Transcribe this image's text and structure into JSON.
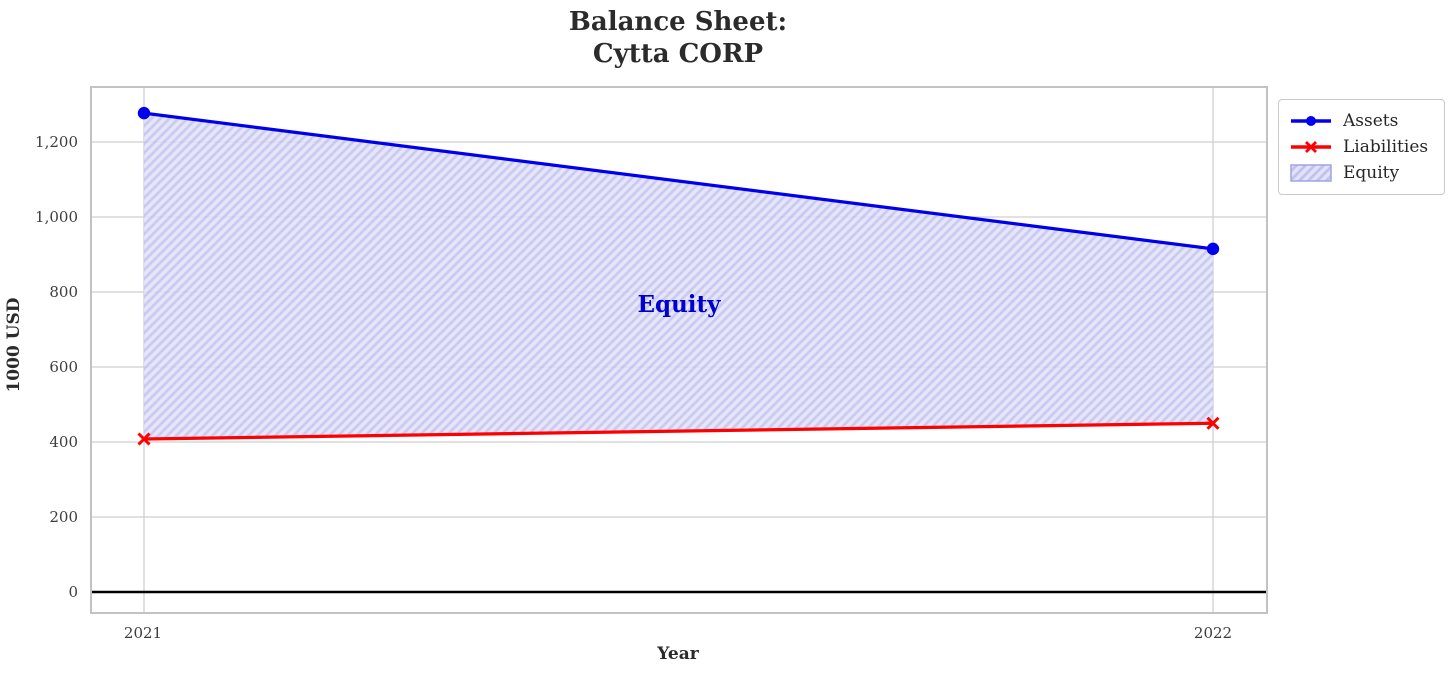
{
  "title": {
    "line1": "Balance Sheet:",
    "line2": "Cytta CORP"
  },
  "chart_data": {
    "type": "line",
    "x_categories": [
      "2021",
      "2022"
    ],
    "series": [
      {
        "name": "Assets",
        "values": [
          1277,
          915
        ],
        "color": "#0000ee",
        "marker": "circle"
      },
      {
        "name": "Liabilities",
        "values": [
          408,
          450
        ],
        "color": "#ff0000",
        "marker": "x"
      }
    ],
    "equity_area": {
      "name": "Equity",
      "between": [
        "Assets",
        "Liabilities"
      ],
      "values": [
        869,
        465
      ],
      "fill": "#e2e2fa",
      "hatch_color": "#c2c2f0",
      "edge_color": "#a3a3e0"
    },
    "annotation": {
      "text": "Equity",
      "color": "#0000cc"
    },
    "xlabel": "Year",
    "ylabel": "1000 USD",
    "yticks": [
      0,
      200,
      400,
      600,
      800,
      1000,
      1200
    ],
    "ytick_labels": [
      "0",
      "200",
      "400",
      "600",
      "800",
      "1,000",
      "1,200"
    ],
    "xtick_labels": [
      "2021",
      "2022"
    ],
    "ylim": [
      -56,
      1347
    ],
    "grid": true,
    "zero_line": true,
    "legend": {
      "position": "outside-upper-right",
      "entries": [
        "Assets",
        "Liabilities",
        "Equity"
      ]
    }
  }
}
